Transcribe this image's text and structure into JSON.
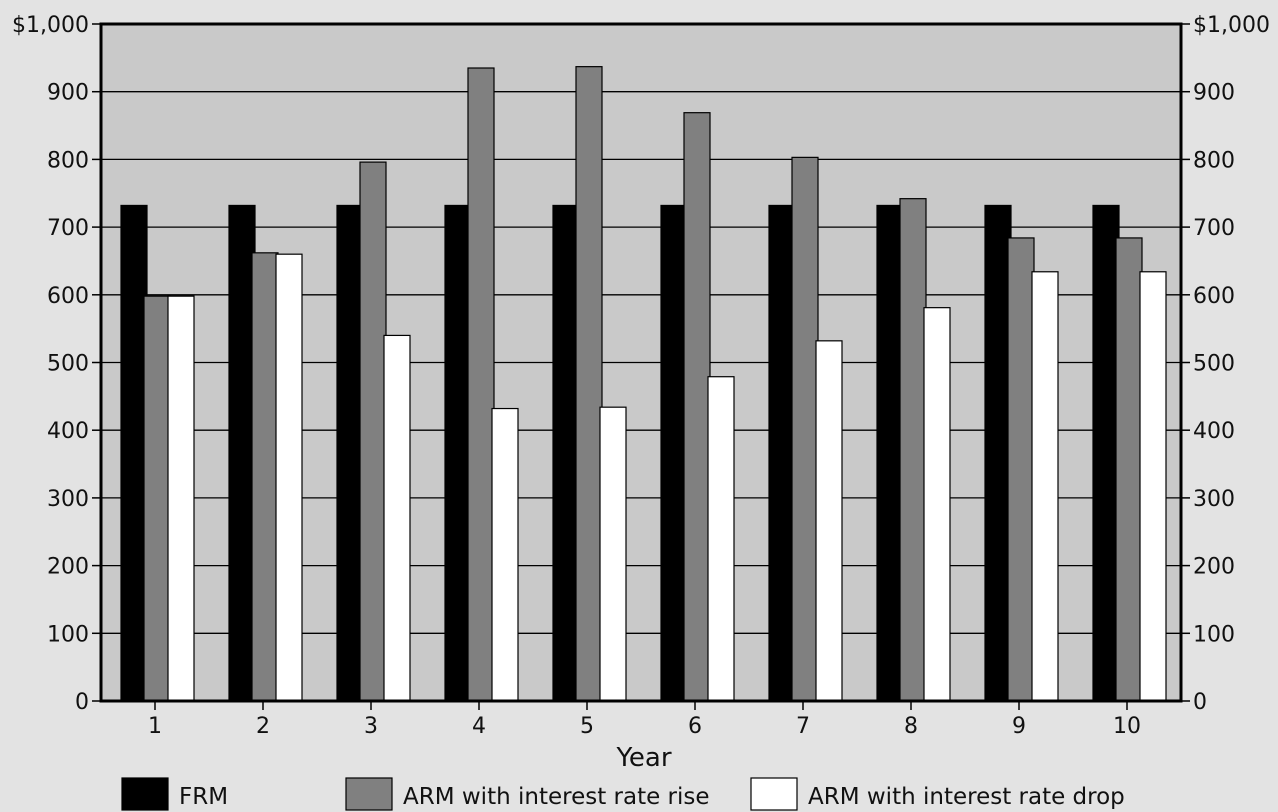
{
  "chart_data": {
    "type": "bar",
    "title": "",
    "xlabel": "Year",
    "ylabel": "",
    "categories": [
      "1",
      "2",
      "3",
      "4",
      "5",
      "6",
      "7",
      "8",
      "9",
      "10"
    ],
    "ylim": [
      0,
      1000
    ],
    "y_ticks_left": [
      "0",
      "100",
      "200",
      "300",
      "400",
      "500",
      "600",
      "700",
      "800",
      "900",
      "$1,000"
    ],
    "y_ticks_right": [
      "0",
      "100",
      "200",
      "300",
      "400",
      "500",
      "600",
      "700",
      "800",
      "900",
      "$1,000"
    ],
    "grid": true,
    "legend_position": "bottom",
    "series": [
      {
        "name": "FRM",
        "color": "#000000",
        "values": [
          732,
          732,
          732,
          732,
          732,
          732,
          732,
          732,
          732,
          732
        ]
      },
      {
        "name": "ARM with interest rate rise",
        "color": "#808080",
        "values": [
          598,
          662,
          796,
          935,
          937,
          869,
          803,
          742,
          684,
          684
        ]
      },
      {
        "name": "ARM with interest rate drop",
        "color": "#ffffff",
        "values": [
          598,
          660,
          540,
          432,
          434,
          479,
          532,
          581,
          634,
          634
        ]
      }
    ]
  },
  "colors": {
    "page_background": "#e3e3e3",
    "plot_background": "#c9c9c9",
    "gridline": "#000000"
  }
}
